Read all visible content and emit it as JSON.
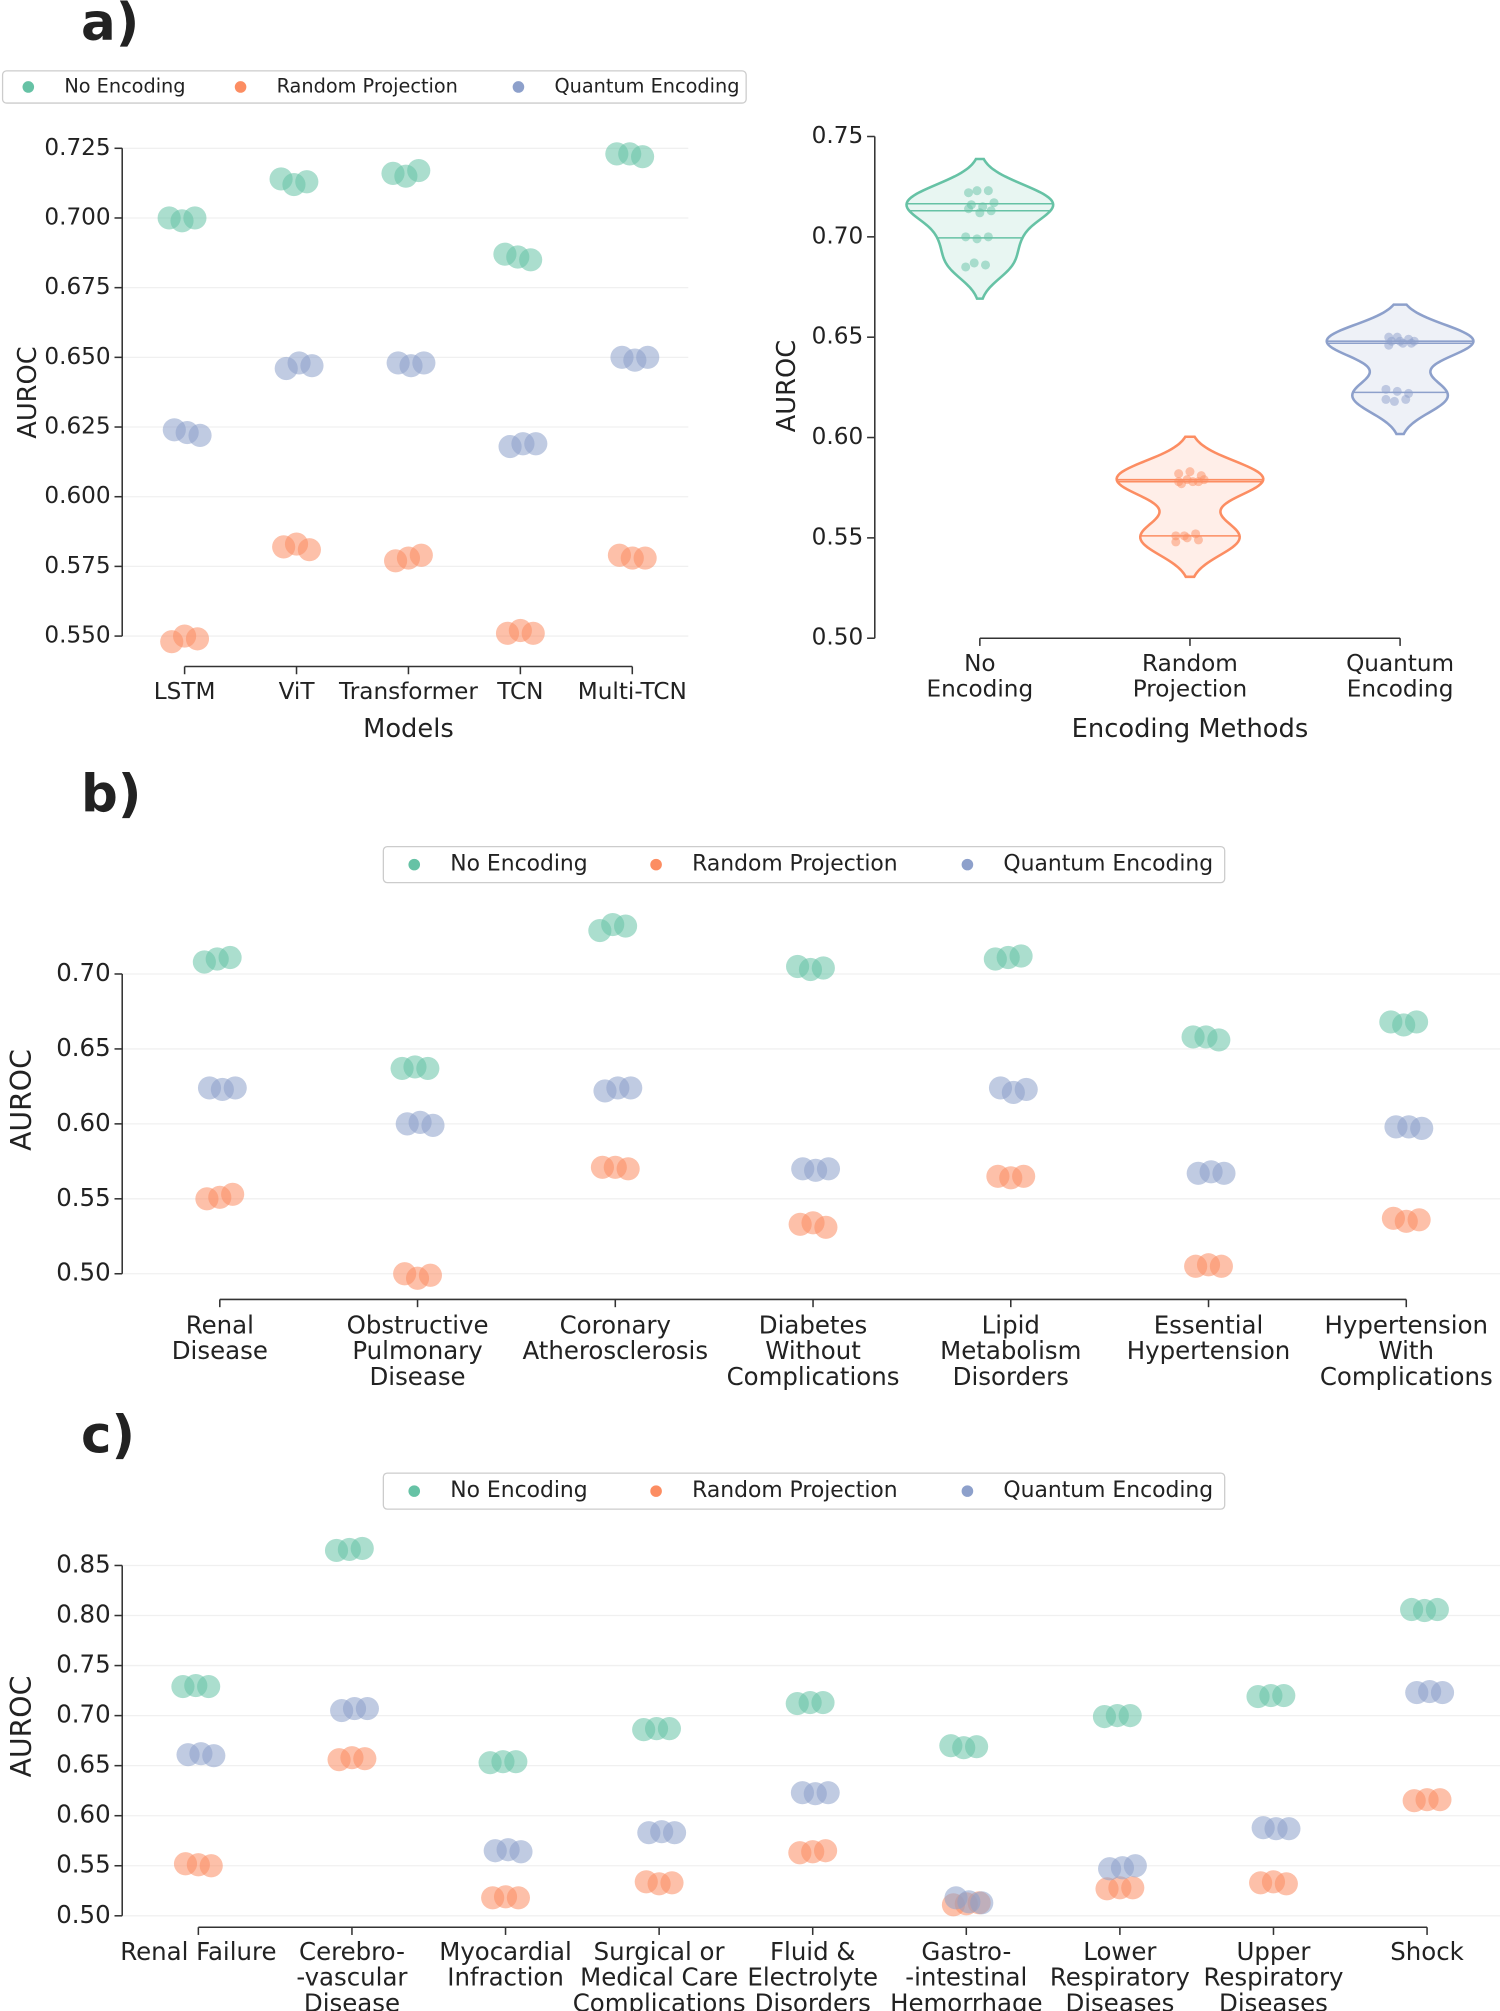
{
  "chart_data": [
    {
      "type": "strip",
      "panel_label": "a)",
      "y_label": "AUROC",
      "x_label": "Models",
      "categories": [
        "LSTM",
        "ViT",
        "Transformer",
        "TCN",
        "Multi-TCN"
      ],
      "series": [
        {
          "name": "No Encoding",
          "color": "#66c2a5",
          "values": [
            [
              0.7,
              0.699,
              0.7
            ],
            [
              0.714,
              0.712,
              0.713
            ],
            [
              0.716,
              0.715,
              0.717
            ],
            [
              0.687,
              0.686,
              0.685
            ],
            [
              0.723,
              0.723,
              0.722
            ]
          ]
        },
        {
          "name": "Random Projection",
          "color": "#fc8d62",
          "values": [
            [
              0.548,
              0.55,
              0.549
            ],
            [
              0.582,
              0.583,
              0.581
            ],
            [
              0.577,
              0.578,
              0.579
            ],
            [
              0.551,
              0.552,
              0.551
            ],
            [
              0.579,
              0.578,
              0.578
            ]
          ]
        },
        {
          "name": "Quantum Encoding",
          "color": "#8da0cb",
          "values": [
            [
              0.624,
              0.623,
              0.622
            ],
            [
              0.646,
              0.648,
              0.647
            ],
            [
              0.648,
              0.647,
              0.648
            ],
            [
              0.618,
              0.619,
              0.619
            ],
            [
              0.65,
              0.649,
              0.65
            ]
          ]
        }
      ],
      "ylim": [
        0.54,
        0.732
      ],
      "yticks": [
        {
          "value": 0.55,
          "label": "0.550"
        },
        0.575,
        {
          "value": 0.6,
          "label": "0.600"
        },
        0.625,
        {
          "value": 0.65,
          "label": "0.650"
        },
        0.675,
        {
          "value": 0.7,
          "label": "0.700"
        },
        0.725
      ],
      "grid": true,
      "legend": "top-left"
    },
    {
      "type": "violin",
      "y_label": "AUROC",
      "x_label": "Encoding Methods",
      "categories": [
        "No\nEncoding",
        "Random\nProjection",
        "Quantum\nEncoding"
      ],
      "colors": [
        "#66c2a5",
        "#fc8d62",
        "#8da0cb"
      ],
      "values": [
        [
          0.7,
          0.699,
          0.7,
          0.714,
          0.712,
          0.713,
          0.716,
          0.715,
          0.717,
          0.687,
          0.686,
          0.685,
          0.723,
          0.723,
          0.722
        ],
        [
          0.548,
          0.55,
          0.549,
          0.582,
          0.583,
          0.581,
          0.577,
          0.578,
          0.579,
          0.551,
          0.552,
          0.551,
          0.579,
          0.578,
          0.578
        ],
        [
          0.624,
          0.623,
          0.622,
          0.646,
          0.648,
          0.647,
          0.648,
          0.647,
          0.648,
          0.618,
          0.619,
          0.619,
          0.65,
          0.649,
          0.65
        ]
      ],
      "ylim": [
        0.5,
        0.75
      ],
      "yticks": [
        {
          "value": 0.5,
          "label": "0.50"
        },
        0.55,
        {
          "value": 0.6,
          "label": "0.60"
        },
        0.65,
        {
          "value": 0.7,
          "label": "0.70"
        },
        0.75
      ],
      "grid": false
    },
    {
      "type": "strip",
      "panel_label": "b)",
      "y_label": "AUROC",
      "categories": [
        "Renal\nDisease",
        "Obstructive\nPulmonary\nDisease",
        "Coronary\nAtherosclerosis",
        "Diabetes\nWithout\nComplications",
        "Lipid\nMetabolism\nDisorders",
        "Essential\nHypertension",
        "Hypertension\nWith\nComplications"
      ],
      "series": [
        {
          "name": "No Encoding",
          "color": "#66c2a5",
          "values": [
            [
              0.708,
              0.71,
              0.711
            ],
            [
              0.637,
              0.638,
              0.637
            ],
            [
              0.729,
              0.733,
              0.732
            ],
            [
              0.705,
              0.703,
              0.704
            ],
            [
              0.71,
              0.711,
              0.712
            ],
            [
              0.658,
              0.658,
              0.656
            ],
            [
              0.668,
              0.666,
              0.668
            ]
          ]
        },
        {
          "name": "Random Projection",
          "color": "#fc8d62",
          "values": [
            [
              0.55,
              0.551,
              0.553
            ],
            [
              0.5,
              0.497,
              0.499
            ],
            [
              0.571,
              0.571,
              0.57
            ],
            [
              0.533,
              0.534,
              0.531
            ],
            [
              0.565,
              0.564,
              0.565
            ],
            [
              0.505,
              0.506,
              0.505
            ],
            [
              0.537,
              0.535,
              0.536
            ]
          ]
        },
        {
          "name": "Quantum Encoding",
          "color": "#8da0cb",
          "values": [
            [
              0.624,
              0.623,
              0.624
            ],
            [
              0.6,
              0.601,
              0.599
            ],
            [
              0.622,
              0.624,
              0.624
            ],
            [
              0.57,
              0.569,
              0.57
            ],
            [
              0.624,
              0.621,
              0.623
            ],
            [
              0.567,
              0.568,
              0.567
            ],
            [
              0.598,
              0.598,
              0.597
            ]
          ]
        }
      ],
      "ylim": [
        0.485,
        0.75
      ],
      "yticks": [
        {
          "value": 0.5,
          "label": "0.50"
        },
        0.55,
        {
          "value": 0.6,
          "label": "0.60"
        },
        0.65,
        {
          "value": 0.7,
          "label": "0.70"
        }
      ],
      "grid": true,
      "legend": "top-center"
    },
    {
      "type": "strip",
      "panel_label": "c)",
      "y_label": "AUROC",
      "categories": [
        "Renal Failure",
        "Cerebro-\n-vascular\nDisease",
        "Myocardial\nInfraction",
        "Surgical or\nMedical Care\nComplications",
        "Fluid &\nElectrolyte\nDisorders",
        "Gastro-\n-intestinal\nHemorrhage",
        "Lower\nRespiratory\nDiseases",
        "Upper\nRespiratory\nDiseases",
        "Shock"
      ],
      "series": [
        {
          "name": "No Encoding",
          "color": "#66c2a5",
          "values": [
            [
              0.729,
              0.73,
              0.729
            ],
            [
              0.865,
              0.866,
              0.867
            ],
            [
              0.653,
              0.654,
              0.654
            ],
            [
              0.686,
              0.687,
              0.687
            ],
            [
              0.712,
              0.713,
              0.713
            ],
            [
              0.67,
              0.668,
              0.669
            ],
            [
              0.699,
              0.7,
              0.7
            ],
            [
              0.719,
              0.72,
              0.72
            ],
            [
              0.806,
              0.805,
              0.806
            ]
          ]
        },
        {
          "name": "Random Projection",
          "color": "#fc8d62",
          "values": [
            [
              0.552,
              0.551,
              0.55
            ],
            [
              0.656,
              0.658,
              0.657
            ],
            [
              0.518,
              0.519,
              0.518
            ],
            [
              0.534,
              0.532,
              0.533
            ],
            [
              0.563,
              0.564,
              0.565
            ],
            [
              0.511,
              0.512,
              0.513
            ],
            [
              0.527,
              0.528,
              0.528
            ],
            [
              0.533,
              0.534,
              0.532
            ],
            [
              0.615,
              0.616,
              0.616
            ]
          ]
        },
        {
          "name": "Quantum Encoding",
          "color": "#8da0cb",
          "values": [
            [
              0.661,
              0.662,
              0.66
            ],
            [
              0.705,
              0.707,
              0.707
            ],
            [
              0.565,
              0.566,
              0.564
            ],
            [
              0.583,
              0.584,
              0.583
            ],
            [
              0.623,
              0.622,
              0.623
            ],
            [
              0.518,
              0.514,
              0.513
            ],
            [
              0.547,
              0.548,
              0.55
            ],
            [
              0.588,
              0.587,
              0.587
            ],
            [
              0.723,
              0.724,
              0.723
            ]
          ]
        }
      ],
      "ylim": [
        0.486,
        0.878
      ],
      "yticks": [
        {
          "value": 0.5,
          "label": "0.50"
        },
        0.55,
        {
          "value": 0.6,
          "label": "0.60"
        },
        0.65,
        {
          "value": 0.7,
          "label": "0.70"
        },
        0.75,
        {
          "value": 0.8,
          "label": "0.80"
        },
        0.85
      ],
      "grid": true,
      "legend": "top-center"
    }
  ]
}
